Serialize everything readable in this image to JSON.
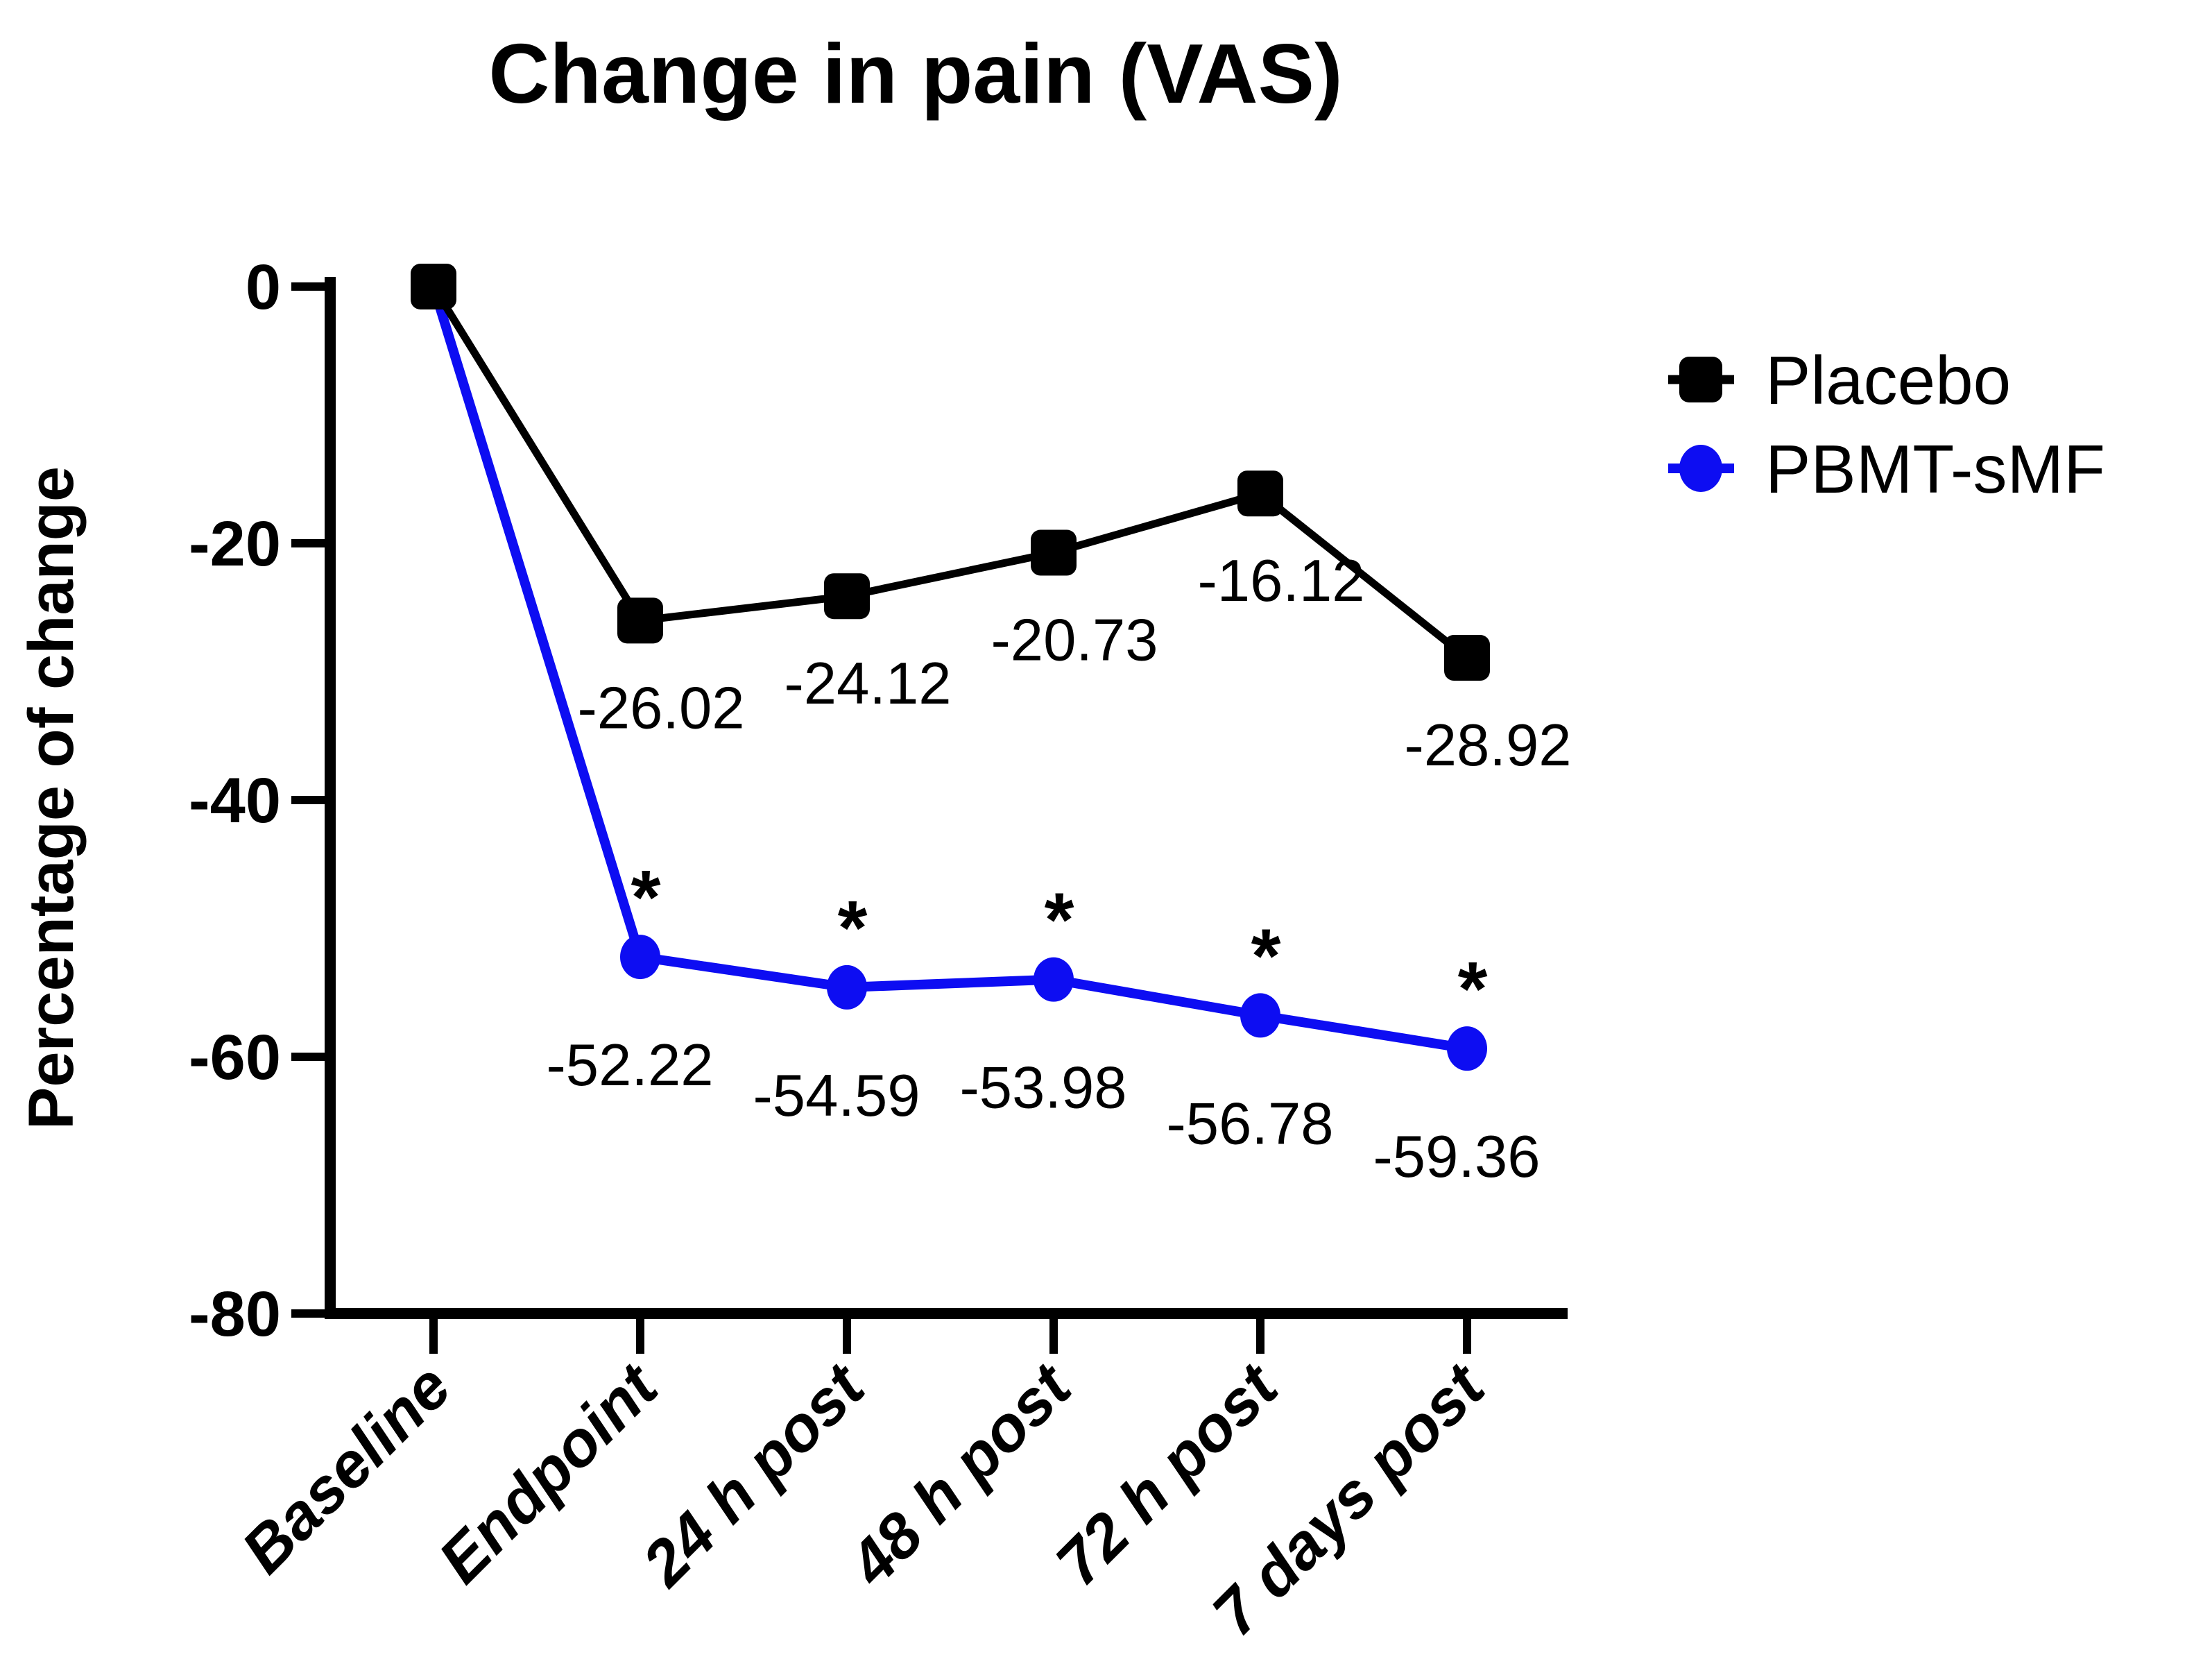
{
  "figure": {
    "background": "#ffffff"
  },
  "chart_data": {
    "type": "line",
    "title": "Change in pain (VAS)",
    "xlabel": "",
    "ylabel": "Percentage of change",
    "ylim": [
      -80,
      0
    ],
    "yticks": [
      0,
      -20,
      -40,
      -60,
      -80
    ],
    "ytick_labels": [
      "0",
      "-20",
      "-40",
      "-60",
      "-80"
    ],
    "categories": [
      "Baseline",
      "Endpoint",
      "24 h post",
      "48 h post",
      "72 h post",
      "7 days post"
    ],
    "grid": false,
    "legend_position": "right",
    "series": [
      {
        "name": "Placebo",
        "color": "#000000",
        "marker": "square",
        "values": [
          0,
          -26.02,
          -24.12,
          -20.73,
          -16.12,
          -28.92
        ],
        "point_labels": [
          "",
          "-26.02",
          "-24.12",
          "-20.73",
          "-16.12",
          "-28.92"
        ],
        "significance": [
          "",
          "",
          "",
          "",
          "",
          ""
        ]
      },
      {
        "name": "PBMT-sMF",
        "color": "#0d0df2",
        "marker": "circle",
        "values": [
          0,
          -52.22,
          -54.59,
          -53.98,
          -56.78,
          -59.36
        ],
        "point_labels": [
          "",
          "-52.22",
          "-54.59",
          "-53.98",
          "-56.78",
          "-59.36"
        ],
        "significance": [
          "",
          "*",
          "*",
          "*",
          "*",
          "*"
        ]
      }
    ]
  }
}
